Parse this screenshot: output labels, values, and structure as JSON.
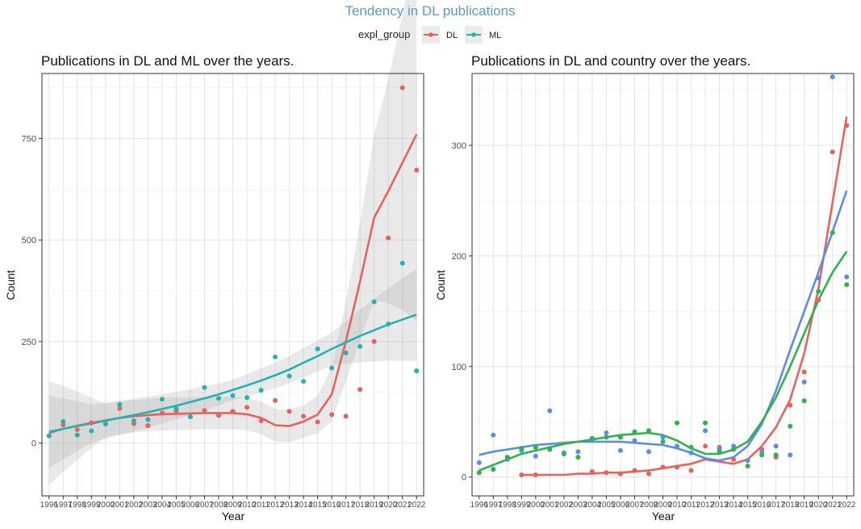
{
  "figure": {
    "title": "Tendency in DL publications",
    "title_color": "#5b9bc2",
    "legend": {
      "title": "expl_group",
      "position": "top",
      "items": [
        {
          "label": "DL",
          "color": "#e8625b"
        },
        {
          "label": "ML",
          "color": "#21b3b4"
        }
      ]
    }
  },
  "chart_data": [
    {
      "type": "scatter",
      "title": "Publications in DL and ML over the years.",
      "xlabel": "Year",
      "ylabel": "Count",
      "x_ticks": [
        "1996",
        "1997",
        "1998",
        "1999",
        "2000",
        "2001",
        "2002",
        "2003",
        "2004",
        "2005",
        "2006",
        "2007",
        "2008",
        "2009",
        "2010",
        "2011",
        "2012",
        "2013",
        "2014",
        "2015",
        "2016",
        "2017",
        "2018",
        "2019",
        "2020",
        "2021",
        "2022"
      ],
      "ylim": [
        -130,
        910
      ],
      "y_ticks": [
        0,
        250,
        500,
        750
      ],
      "grid": true,
      "smooth": "loess with confidence band",
      "series": [
        {
          "name": "DL",
          "color": "#e8625b",
          "x": [
            1996,
            1997,
            1998,
            1999,
            2000,
            2001,
            2002,
            2003,
            2004,
            2005,
            2006,
            2007,
            2008,
            2009,
            2010,
            2011,
            2012,
            2013,
            2014,
            2015,
            2016,
            2017,
            2018,
            2019,
            2020,
            2021,
            2022
          ],
          "y": [
            18,
            45,
            33,
            50,
            48,
            85,
            48,
            43,
            74,
            78,
            65,
            80,
            68,
            78,
            88,
            55,
            105,
            78,
            66,
            52,
            70,
            66,
            132,
            250,
            505,
            875,
            672
          ],
          "trend": [
            25,
            35,
            43,
            50,
            56,
            62,
            66,
            69,
            71,
            72,
            73,
            74,
            74,
            74,
            71,
            62,
            44,
            42,
            53,
            70,
            120,
            250,
            398,
            555,
            620,
            690,
            760
          ]
        },
        {
          "name": "ML",
          "color": "#21b3b4",
          "x": [
            1996,
            1997,
            1998,
            1999,
            2000,
            2001,
            2002,
            2003,
            2004,
            2005,
            2006,
            2007,
            2008,
            2009,
            2010,
            2011,
            2012,
            2013,
            2014,
            2015,
            2016,
            2017,
            2018,
            2019,
            2020,
            2021,
            2022
          ],
          "y": [
            18,
            53,
            20,
            30,
            47,
            95,
            55,
            58,
            108,
            85,
            65,
            137,
            110,
            117,
            112,
            130,
            212,
            165,
            152,
            232,
            185,
            222,
            238,
            348,
            293,
            443,
            178
          ],
          "trend": [
            28,
            35,
            42,
            48,
            55,
            62,
            69,
            76,
            84,
            92,
            101,
            110,
            120,
            131,
            142,
            154,
            167,
            181,
            198,
            214,
            232,
            248,
            264,
            278,
            292,
            304,
            316
          ]
        }
      ]
    },
    {
      "type": "scatter",
      "title": "Publications in DL and country over the years.",
      "xlabel": "Year",
      "ylabel": "Count",
      "x_ticks": [
        "1996",
        "1997",
        "1998",
        "1999",
        "2000",
        "2001",
        "2002",
        "2003",
        "2004",
        "2005",
        "2006",
        "2007",
        "2008",
        "2009",
        "2010",
        "2011",
        "2012",
        "2013",
        "2014",
        "2015",
        "2016",
        "2017",
        "2018",
        "2019",
        "2020",
        "2021",
        "2022"
      ],
      "ylim": [
        -17,
        365
      ],
      "y_ticks": [
        0,
        100,
        200,
        300
      ],
      "grid": true,
      "smooth": "loess",
      "series": [
        {
          "color": "#e8625b",
          "x": [
            1999,
            2000,
            2004,
            2005,
            2006,
            2007,
            2008,
            2009,
            2010,
            2011,
            2012,
            2013,
            2014,
            2015,
            2016,
            2017,
            2018,
            2019,
            2020,
            2021,
            2022
          ],
          "y": [
            2,
            2,
            5,
            4,
            3,
            6,
            3,
            9,
            9,
            6,
            28,
            27,
            16,
            15,
            25,
            18,
            65,
            95,
            160,
            294,
            318
          ],
          "trend_x": [
            1999,
            2000,
            2001,
            2002,
            2003,
            2004,
            2005,
            2006,
            2007,
            2008,
            2009,
            2010,
            2011,
            2012,
            2013,
            2014,
            2015,
            2016,
            2017,
            2018,
            2019,
            2020,
            2021,
            2022
          ],
          "trend": [
            2,
            2,
            2,
            2,
            3,
            3,
            4,
            4,
            5,
            6,
            8,
            10,
            12,
            16,
            14,
            12,
            16,
            28,
            45,
            70,
            112,
            170,
            248,
            326
          ]
        },
        {
          "color": "#5b8de8",
          "x": [
            1996,
            1997,
            1998,
            1999,
            2000,
            2001,
            2002,
            2003,
            2004,
            2005,
            2006,
            2007,
            2008,
            2009,
            2010,
            2011,
            2012,
            2013,
            2014,
            2015,
            2016,
            2017,
            2018,
            2019,
            2020,
            2021,
            2022
          ],
          "y": [
            13,
            38,
            16,
            24,
            19,
            60,
            22,
            23,
            34,
            40,
            24,
            33,
            23,
            36,
            28,
            22,
            42,
            25,
            28,
            15,
            23,
            28,
            20,
            86,
            180,
            362,
            181
          ],
          "trend": [
            20,
            23,
            25,
            27,
            29,
            30,
            31,
            32,
            32,
            32,
            32,
            31,
            30,
            29,
            26,
            22,
            17,
            15,
            18,
            28,
            48,
            78,
            115,
            150,
            185,
            222,
            259
          ]
        },
        {
          "color": "#2db34a",
          "x": [
            1996,
            1997,
            1998,
            1999,
            2000,
            2001,
            2002,
            2003,
            2004,
            2005,
            2006,
            2007,
            2008,
            2009,
            2010,
            2011,
            2012,
            2013,
            2014,
            2015,
            2016,
            2017,
            2018,
            2019,
            2020,
            2021,
            2022
          ],
          "y": [
            4,
            7,
            18,
            26,
            27,
            25,
            21,
            18,
            35,
            36,
            36,
            41,
            42,
            32,
            49,
            27,
            49,
            23,
            25,
            10,
            20,
            20,
            46,
            69,
            168,
            221,
            174
          ],
          "trend": [
            6,
            11,
            16,
            21,
            24,
            27,
            30,
            32,
            34,
            36,
            38,
            39,
            40,
            38,
            33,
            26,
            21,
            21,
            25,
            32,
            50,
            72,
            100,
            130,
            160,
            185,
            204
          ]
        }
      ]
    }
  ]
}
